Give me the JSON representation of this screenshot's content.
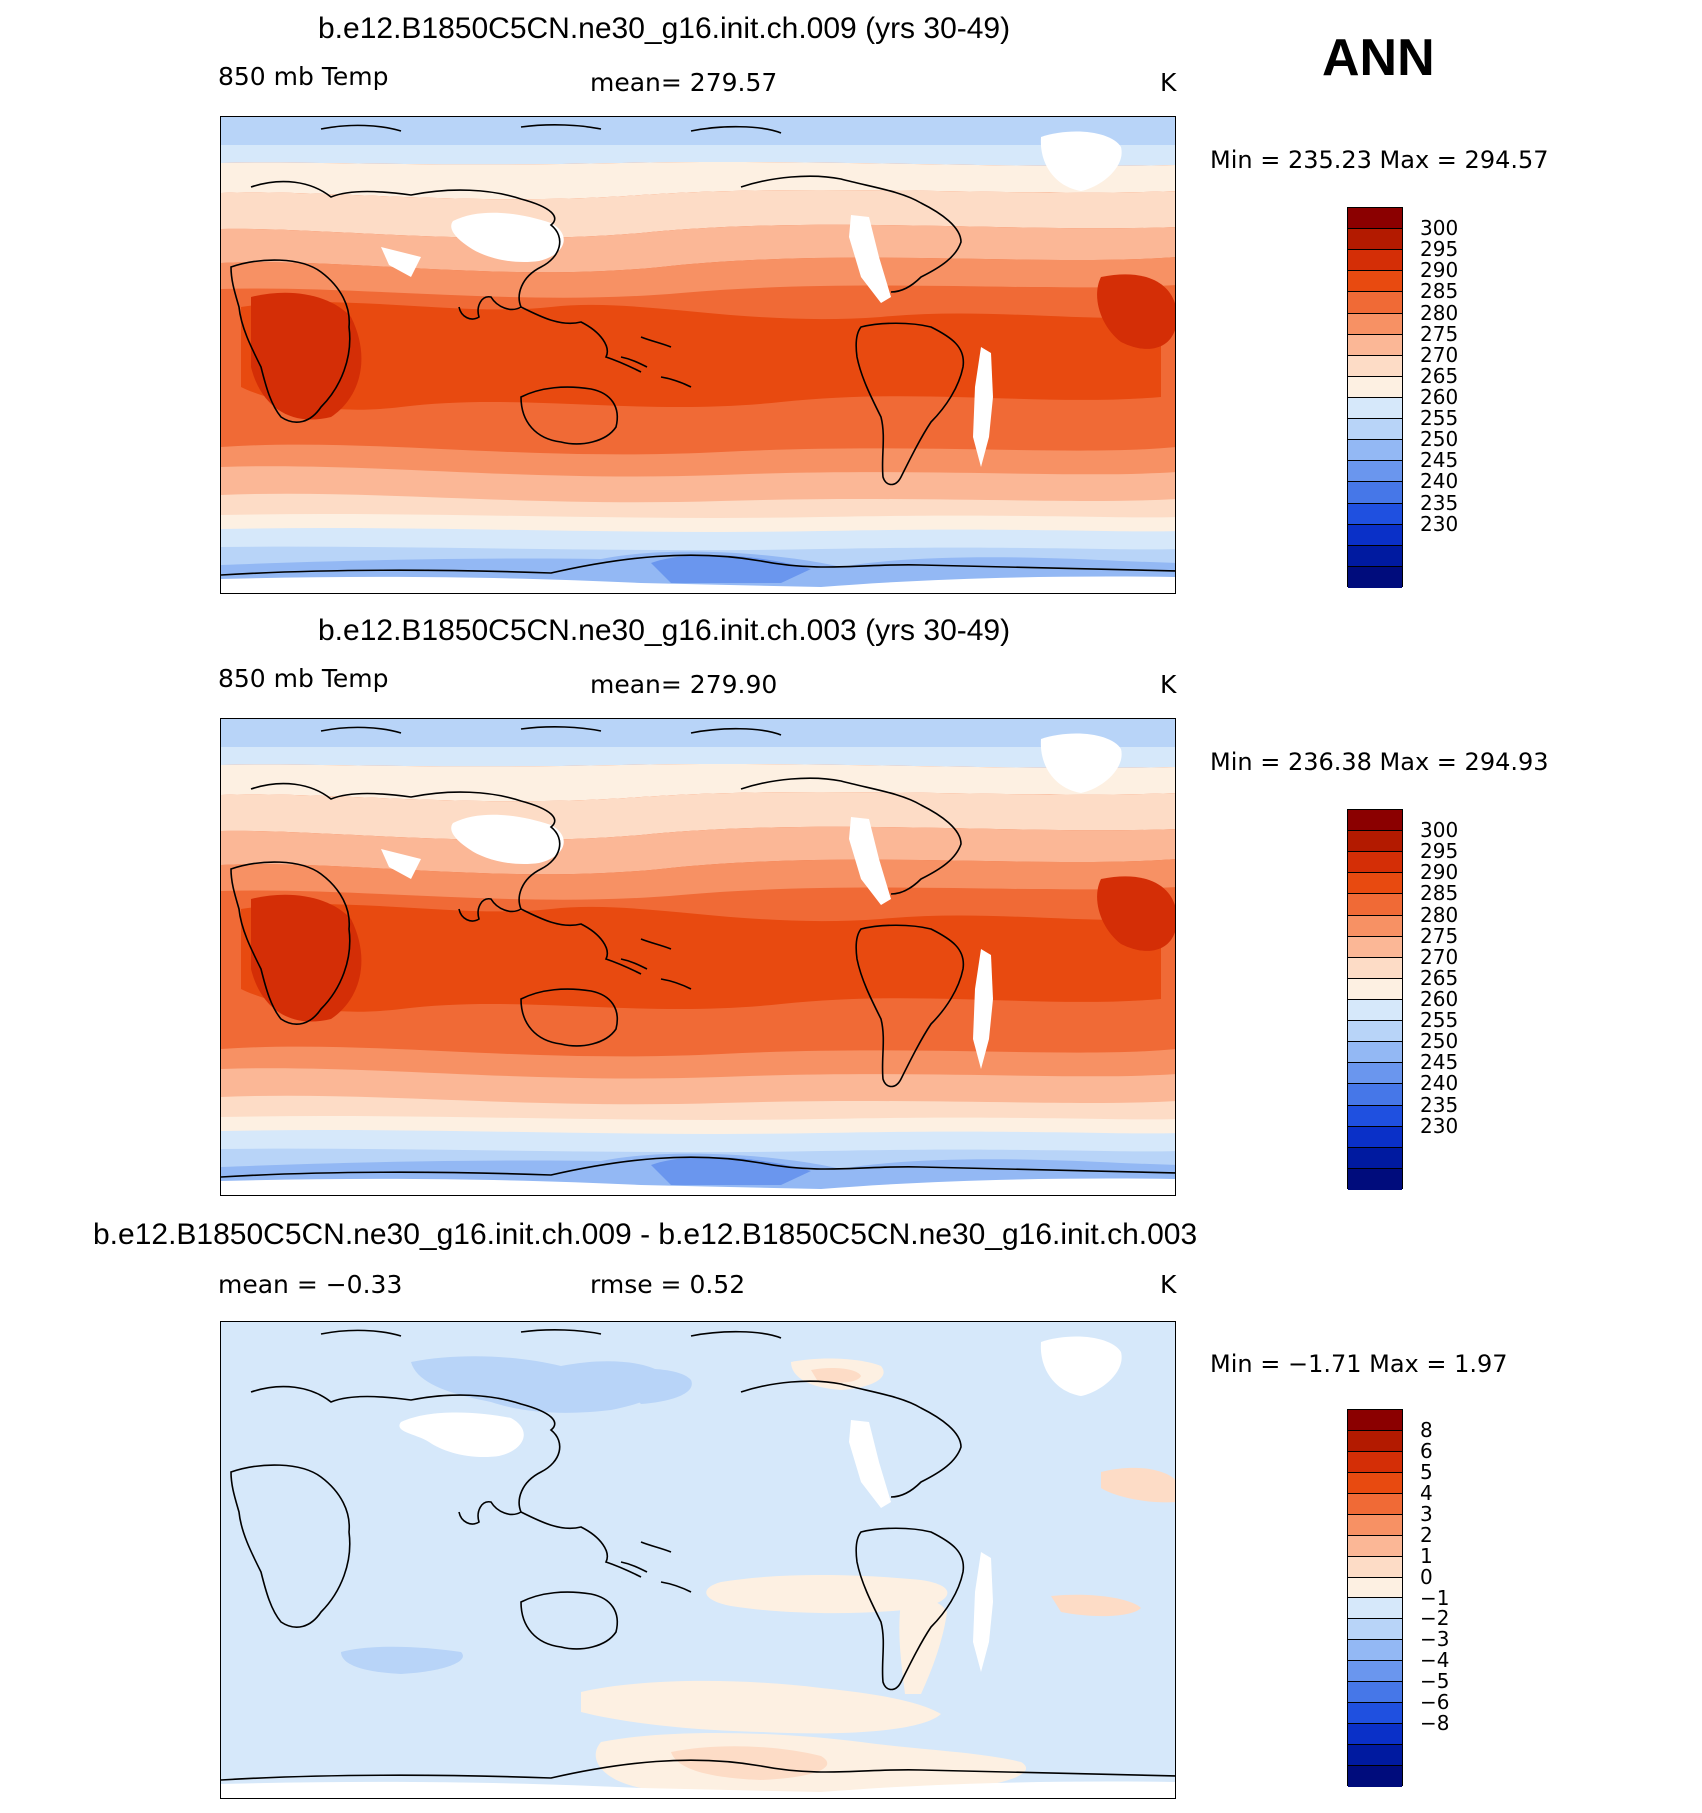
{
  "season": "ANN",
  "panels": [
    {
      "title": "b.e12.B1850C5CN.ne30_g16.init.ch.009 (yrs 30-49)",
      "left_label": "850 mb Temp",
      "stat1": "mean=  279.57",
      "units": "K",
      "minmax": "Min  =  235.23  Max  =  294.57"
    },
    {
      "title": "b.e12.B1850C5CN.ne30_g16.init.ch.003 (yrs 30-49)",
      "left_label": "850 mb Temp",
      "stat1": "mean=  279.90",
      "units": "K",
      "minmax": "Min  =  236.38  Max  =  294.93"
    },
    {
      "title": "b.e12.B1850C5CN.ne30_g16.init.ch.009 - b.e12.B1850C5CN.ne30_g16.init.ch.003",
      "left_label": "mean  =    −0.33",
      "stat1": "rmse  =      0.52",
      "units": "K",
      "minmax": "Min  =    −1.71  Max  =      1.97"
    }
  ],
  "colorbars": {
    "temp": {
      "labels": [
        "300",
        "295",
        "290",
        "285",
        "280",
        "275",
        "270",
        "265",
        "260",
        "255",
        "250",
        "245",
        "240",
        "235",
        "230"
      ],
      "colors": [
        "#8b0000",
        "#b31a00",
        "#d42e06",
        "#e84a10",
        "#f06a36",
        "#f79164",
        "#fbb796",
        "#fddcc6",
        "#fdf0e2",
        "#d6e8fa",
        "#b8d4f8",
        "#93b8f4",
        "#6a96ee",
        "#4677e8",
        "#1f50e0",
        "#0a30c8",
        "#001aa0",
        "#000c7c"
      ]
    },
    "diff": {
      "labels": [
        "8",
        "6",
        "5",
        "4",
        "3",
        "2",
        "1",
        "0",
        "−1",
        "−2",
        "−3",
        "−4",
        "−5",
        "−6",
        "−8"
      ],
      "colors": [
        "#8b0000",
        "#b31a00",
        "#d42e06",
        "#e84a10",
        "#f06a36",
        "#f79164",
        "#fbb796",
        "#fddcc6",
        "#fdf0e2",
        "#d6e8fa",
        "#b8d4f8",
        "#93b8f4",
        "#6a96ee",
        "#4677e8",
        "#1f50e0",
        "#0a30c8",
        "#001aa0",
        "#000c7c"
      ]
    }
  }
}
